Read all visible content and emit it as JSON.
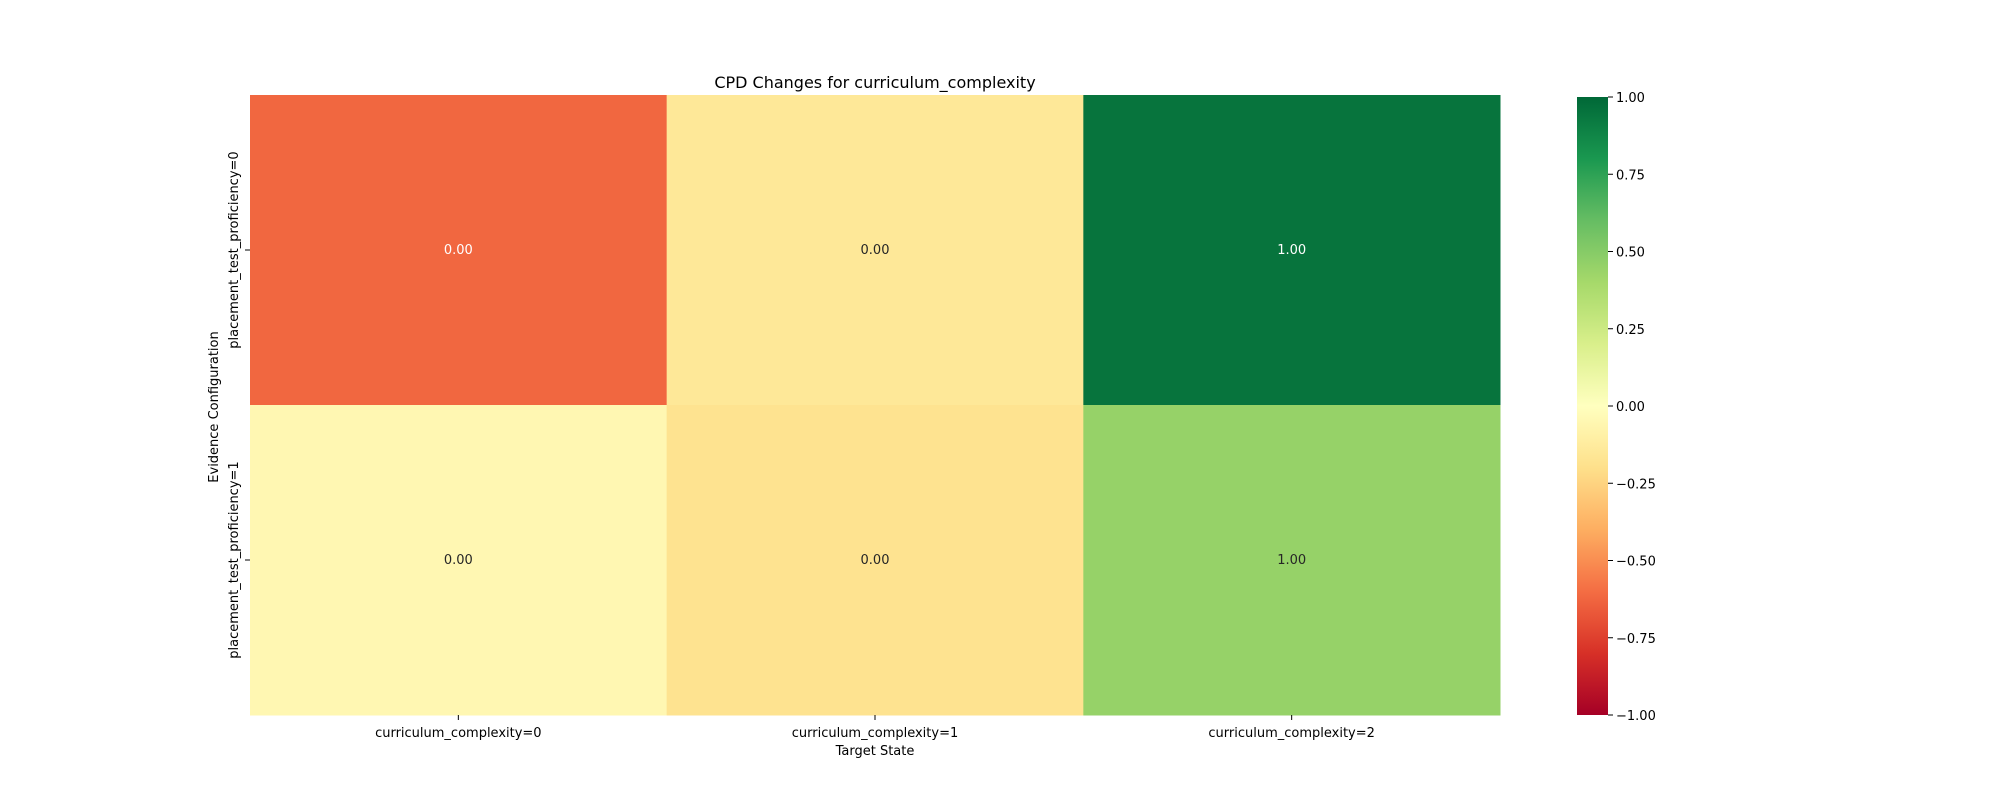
{
  "chart_data": {
    "type": "heatmap",
    "title": "CPD Changes for curriculum_complexity",
    "xlabel": "Target State",
    "ylabel": "Evidence Configuration",
    "x_categories": [
      "curriculum_complexity=0",
      "curriculum_complexity=1",
      "curriculum_complexity=2"
    ],
    "y_categories": [
      "placement_test_proficiency=0",
      "placement_test_proficiency=1"
    ],
    "values": [
      [
        -0.62,
        -0.15,
        0.95
      ],
      [
        -0.05,
        -0.18,
        0.45
      ]
    ],
    "annotations": [
      [
        "0.00",
        "0.00",
        "1.00"
      ],
      [
        "0.00",
        "0.00",
        "1.00"
      ]
    ],
    "colormap": "RdYlGn",
    "vmin": -1,
    "vmax": 1,
    "colorbar_ticks": [
      "1.00",
      "0.75",
      "0.50",
      "0.25",
      "0.00",
      "−0.25",
      "−0.50",
      "−0.75",
      "−1.00"
    ],
    "colorbar_tick_values": [
      1,
      0.75,
      0.5,
      0.25,
      0,
      -0.25,
      -0.5,
      -0.75,
      -1
    ],
    "legend_placement": "right"
  }
}
